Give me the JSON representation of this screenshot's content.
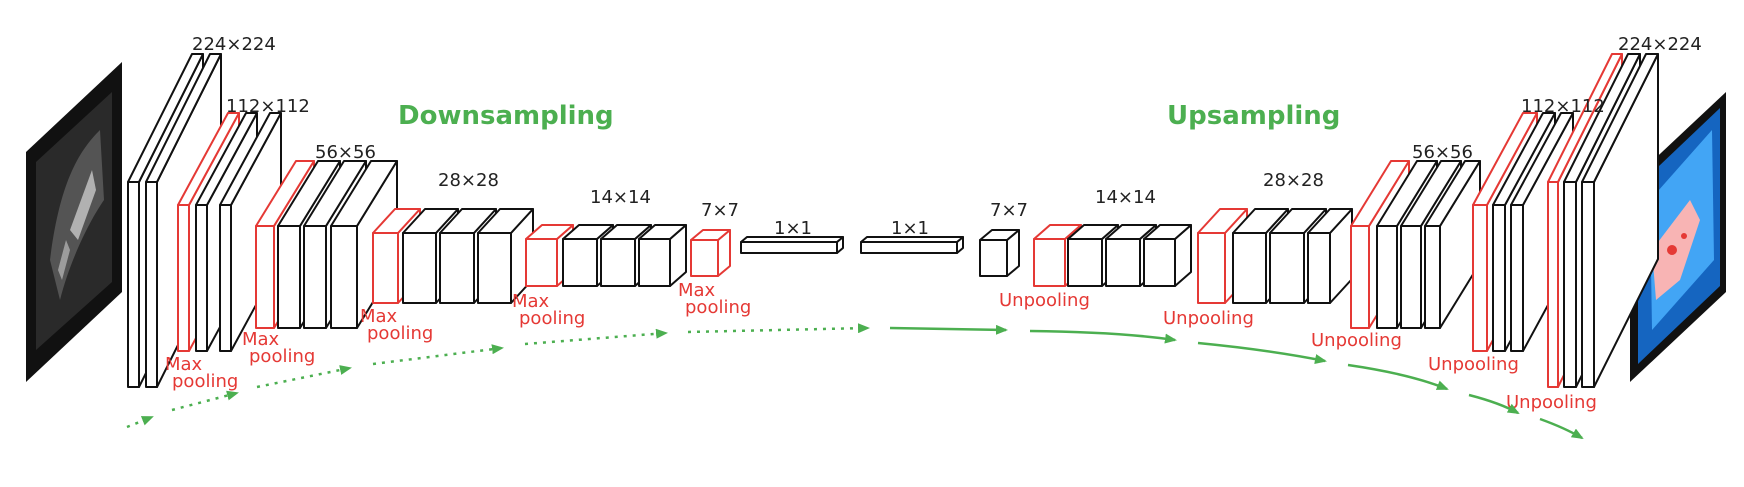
{
  "titles": {
    "down": "Downsampling",
    "up": "Upsampling"
  },
  "dims": {
    "d224": "224×224",
    "d112": "112×112",
    "d56": "56×56",
    "d28": "28×28",
    "d14": "14×14",
    "d7": "7×7",
    "d1a": "1×1",
    "d1b": "1×1",
    "u7": "7×7",
    "u14": "14×14",
    "u28": "28×28",
    "u56": "56×56",
    "u112": "112×112",
    "u224": "224×224"
  },
  "pool_labels": {
    "max_line1": "Max",
    "max_line2": "pooling",
    "unpool": "Unpooling"
  },
  "colors": {
    "green": "#4caf50",
    "red": "#e53935",
    "block_stroke": "#111111"
  }
}
